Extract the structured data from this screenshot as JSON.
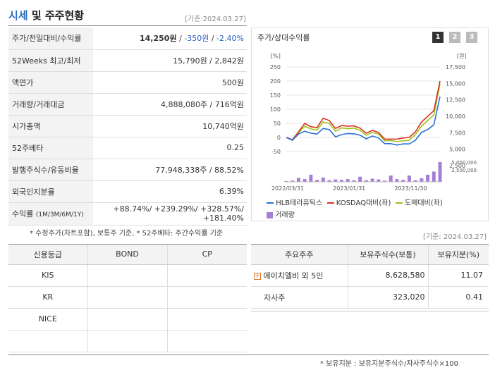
{
  "header": {
    "title_accent": "시세",
    "title_rest": " 및 주주현황",
    "date": "[기준:2024.03.27]"
  },
  "info_rows": [
    {
      "label": "주가/전일대비/수익률"
    },
    {
      "label": "52Weeks 최고/최저",
      "value": "15,790원 / 2,842원"
    },
    {
      "label": "액면가",
      "value": "500원"
    },
    {
      "label": "거래량/거래대금",
      "value": "4,888,080주 / 716억원"
    },
    {
      "label": "시가총액",
      "value": "10,740억원"
    },
    {
      "label": "52주베타",
      "value": "0.25"
    },
    {
      "label": "발행주식수/유동비율",
      "value": "77,948,338주 / 88.52%"
    },
    {
      "label": "외국인지분율",
      "value": "6.39%"
    }
  ],
  "price": {
    "value": "14,250원",
    "change": "-350원",
    "rate": "-2.40%",
    "sep": " / "
  },
  "returns": {
    "label": "수익률",
    "label_sub": "(1M/3M/6M/1Y)",
    "line1": "+88.74%/ +239.29%/ +328.57%/",
    "line2": "+181.40%"
  },
  "footnote_left": "* 수정주가(차트포함), 보통주 기준, * 52주베타: 주간수익률 기준",
  "chart": {
    "title": "주가/상대수익률",
    "tabs": [
      "1",
      "2",
      "3"
    ],
    "left_unit": "[%]",
    "right_unit": "[원]",
    "left_ticks": [
      "250",
      "200",
      "150",
      "100",
      "50",
      "0",
      "-50"
    ],
    "right_ticks": [
      "17,500",
      "15,000",
      "12,500",
      "10,000",
      "7,500",
      "5,000",
      "2,500"
    ],
    "vol_ticks": [
      "5,000,000",
      "2,500,000"
    ],
    "x_ticks": [
      "2022/03/31",
      "2023/01/31",
      "2023/11/30"
    ],
    "legend": [
      {
        "name": "HLB테라퓨틱스",
        "color": "#2a6fd6"
      },
      {
        "name": "KOSDAQ대비(좌)",
        "color": "#d8311f"
      },
      {
        "name": "도매대비(좌)",
        "color": "#9cc21a"
      },
      {
        "name": "거래량",
        "color": "#a57fd6"
      }
    ]
  },
  "chart_data": {
    "type": "line",
    "x": [
      "2022/03/31",
      "",
      "",
      "",
      "",
      "",
      "",
      "",
      "",
      "",
      "2023/01/31",
      "",
      "",
      "",
      "",
      "",
      "",
      "",
      "",
      "",
      "2023/11/30",
      "",
      "",
      "",
      "",
      ""
    ],
    "series": [
      {
        "name": "HLB테라퓨틱스",
        "values": [
          0,
          -10,
          12,
          22,
          15,
          12,
          32,
          28,
          2,
          10,
          14,
          13,
          8,
          -5,
          5,
          -2,
          -22,
          -22,
          -27,
          -23,
          -23,
          -10,
          18,
          28,
          45,
          145
        ]
      },
      {
        "name": "KOSDAQ대비(좌)",
        "values": [
          0,
          -8,
          20,
          50,
          38,
          35,
          68,
          60,
          32,
          42,
          40,
          41,
          33,
          15,
          25,
          18,
          -6,
          -6,
          -6,
          -2,
          0,
          20,
          55,
          75,
          95,
          200
        ]
      },
      {
        "name": "도매대비(좌)",
        "values": [
          0,
          -10,
          17,
          40,
          30,
          26,
          55,
          50,
          22,
          34,
          31,
          33,
          25,
          8,
          18,
          12,
          -12,
          -11,
          -15,
          -12,
          -10,
          10,
          40,
          60,
          80,
          190
        ]
      }
    ],
    "volume": [
      0.2,
      0.3,
      1.0,
      0.7,
      1.8,
      0.5,
      1.1,
      0.4,
      0.6,
      0.5,
      0.7,
      0.4,
      1.3,
      0.4,
      0.8,
      0.6,
      0.3,
      1.6,
      0.7,
      0.5,
      1.6,
      0.4,
      0.9,
      1.8,
      2.6,
      5.0
    ],
    "ylim": [
      -50,
      250
    ],
    "volume_ylim": [
      0,
      5000000
    ]
  },
  "footnote_right_date": "[기준: 2024.03.27]",
  "credit": {
    "headers": [
      "신용등급",
      "BOND",
      "CP"
    ],
    "rows": [
      [
        "KIS",
        "",
        ""
      ],
      [
        "KR",
        "",
        ""
      ],
      [
        "NICE",
        "",
        ""
      ],
      [
        "",
        "",
        ""
      ]
    ]
  },
  "holders": {
    "headers": [
      "주요주주",
      "보유주식수(보통)",
      "보유지분(%)"
    ],
    "rows": [
      {
        "name": "에이치엘비 외 5인",
        "shares": "8,628,580",
        "pct": "11.07"
      },
      {
        "name": "자사주",
        "shares": "323,020",
        "pct": "0.41"
      }
    ],
    "plus_icon": "plus-icon"
  },
  "footnote_bottom": "* 보유지분 : 보유지분주식수/자사주식수×100"
}
